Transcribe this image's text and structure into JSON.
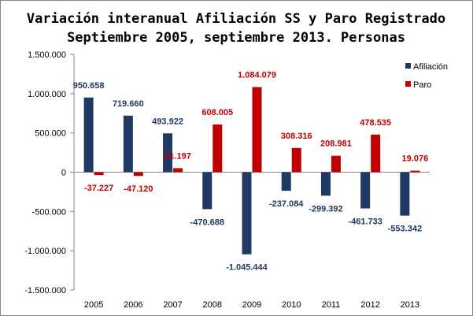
{
  "chart_data": {
    "type": "bar",
    "title": "Variación interanual Afiliación SS y Paro Registrado",
    "subtitle": "Septiembre 2005, septiembre 2013. Personas",
    "categories": [
      "2005",
      "2006",
      "2007",
      "2008",
      "2009",
      "2010",
      "2011",
      "2012",
      "2013"
    ],
    "series": [
      {
        "name": "Afiliación",
        "color": "#1F3864",
        "values": [
          950658,
          719660,
          493922,
          -470688,
          -1045444,
          -237084,
          -299392,
          -461733,
          -553342
        ],
        "labels": [
          "950.658",
          "719.660",
          "493.922",
          "-470.688",
          "-1.045.444",
          "-237.084",
          "-299.392",
          "-461.733",
          "-553.342"
        ]
      },
      {
        "name": "Paro",
        "color": "#C00000",
        "values": [
          -37227,
          -47120,
          51197,
          608005,
          1084079,
          308316,
          208981,
          478535,
          19076
        ],
        "labels": [
          "-37.227",
          "-47.120",
          "51.197",
          "608.005",
          "1.084.079",
          "308.316",
          "208.981",
          "478.535",
          "19.076"
        ]
      }
    ],
    "ylim": [
      -1500000,
      1500000
    ],
    "yticks": [
      1500000,
      1000000,
      500000,
      0,
      -500000,
      -1000000,
      -1500000
    ],
    "ytick_labels": [
      "1.500.000",
      "1.000.000",
      "500.000",
      "0",
      "-500.000",
      "-1.000.000",
      "-1.500.000"
    ],
    "xlabel": "",
    "ylabel": "",
    "grid": false,
    "legend_position": "top-right"
  }
}
